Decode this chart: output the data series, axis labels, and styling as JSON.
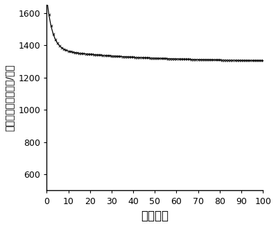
{
  "title": "",
  "xlabel": "循环次数",
  "ylabel": "放电比容量（毫安时/克）",
  "xlim": [
    0,
    100
  ],
  "ylim": [
    500,
    1650
  ],
  "yticks": [
    600,
    800,
    1000,
    1200,
    1400,
    1600
  ],
  "xticks": [
    0,
    10,
    20,
    30,
    40,
    50,
    60,
    70,
    80,
    90,
    100
  ],
  "line_color": "#000000",
  "background_color": "#ffffff",
  "curve_A": 320,
  "curve_k1": 0.38,
  "curve_B": 75,
  "curve_k2": 0.025,
  "curve_C": 1298,
  "xlabel_fontsize": 12,
  "ylabel_fontsize": 10,
  "tick_fontsize": 9
}
